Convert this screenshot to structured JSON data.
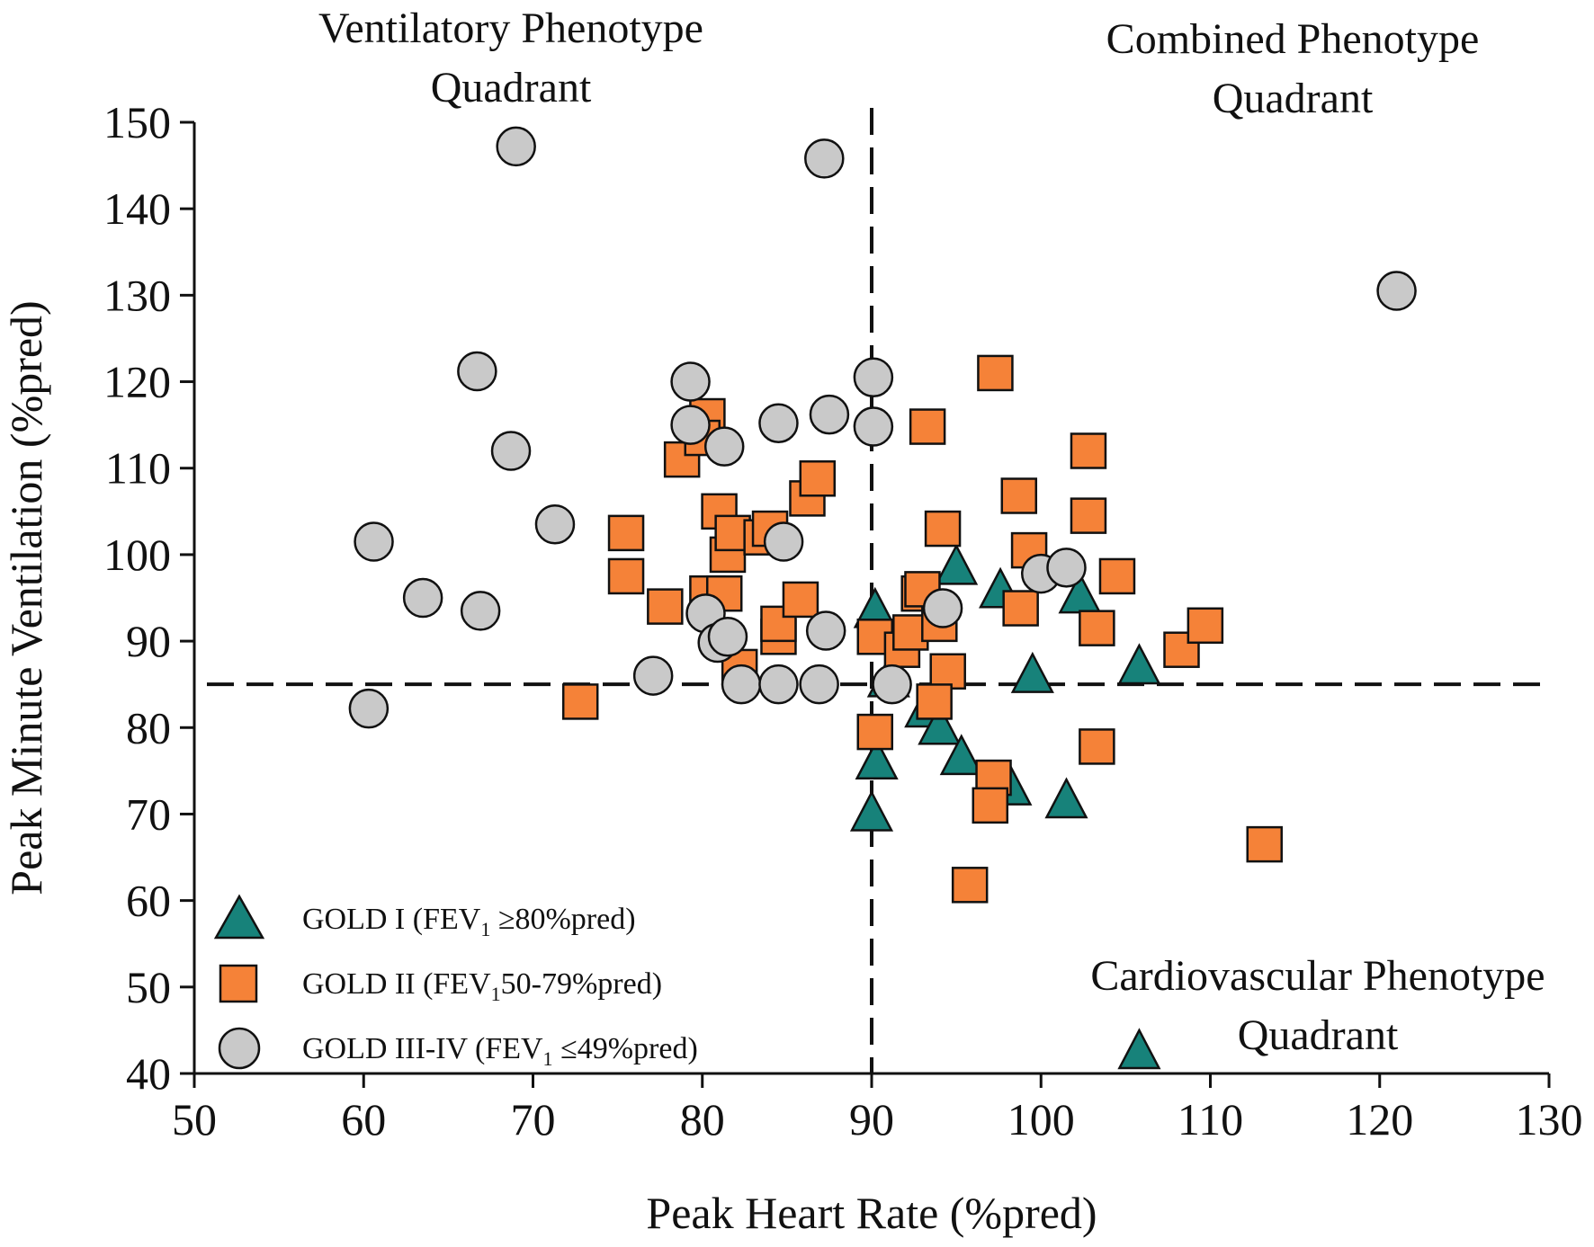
{
  "chart_data": {
    "type": "scatter",
    "xlabel": "Peak Heart Rate (%pred)",
    "ylabel": "Peak Minute Ventilation (%pred)",
    "xlim": [
      50,
      130
    ],
    "ylim": [
      40,
      150
    ],
    "xticks": [
      50,
      60,
      70,
      80,
      90,
      100,
      110,
      120,
      130
    ],
    "yticks": [
      40,
      50,
      60,
      70,
      80,
      90,
      100,
      110,
      120,
      130,
      140,
      150
    ],
    "reference_lines": {
      "x": 90,
      "y": 85,
      "style": "dashed"
    },
    "quadrant_labels": {
      "ventilatory": [
        "Ventilatory Phenotype",
        "Quadrant"
      ],
      "combined": [
        "Combined Phenotype",
        "Quadrant"
      ],
      "cardiovascular": [
        "Cardiovascular Phenotype",
        "Quadrant"
      ]
    },
    "legend": {
      "position": "bottom-left",
      "entries": [
        {
          "pre": "GOLD I (FEV",
          "sub": "1",
          "post": " ≥80%pred)"
        },
        {
          "pre": "GOLD II (FEV",
          "sub": "1",
          "post": "50-79%pred)"
        },
        {
          "pre": "GOLD III-IV (FEV",
          "sub": "1",
          "post": " ≤49%pred)"
        }
      ]
    },
    "series": [
      {
        "name": "GOLD I (FEV1 ≥80%pred)",
        "marker": "triangle",
        "color": "#17827a",
        "points": [
          [
            90.2,
            93.5
          ],
          [
            91.0,
            85.5
          ],
          [
            90.3,
            76.0
          ],
          [
            90.0,
            70.0
          ],
          [
            93.2,
            82.0
          ],
          [
            94.0,
            80.0
          ],
          [
            95.3,
            76.5
          ],
          [
            95.0,
            98.5
          ],
          [
            97.6,
            95.8
          ],
          [
            98.2,
            73.0
          ],
          [
            99.5,
            86.0
          ],
          [
            101.5,
            71.5
          ],
          [
            102.3,
            95.2
          ],
          [
            105.8,
            87.0
          ],
          [
            105.8,
            42.5
          ]
        ]
      },
      {
        "name": "GOLD II (FEV1 50-79%pred)",
        "marker": "square",
        "color": "#f58238",
        "points": [
          [
            72.8,
            83.0
          ],
          [
            75.5,
            102.5
          ],
          [
            75.5,
            97.5
          ],
          [
            77.8,
            94.0
          ],
          [
            78.8,
            111.0
          ],
          [
            80.3,
            116.0
          ],
          [
            80.0,
            113.5
          ],
          [
            80.3,
            95.5
          ],
          [
            81.0,
            105.0
          ],
          [
            81.5,
            100.0
          ],
          [
            81.3,
            95.5
          ],
          [
            81.8,
            102.5
          ],
          [
            82.2,
            87.0
          ],
          [
            83.5,
            102.0
          ],
          [
            84.0,
            103.0
          ],
          [
            84.5,
            90.5
          ],
          [
            84.5,
            92.0
          ],
          [
            85.8,
            94.8
          ],
          [
            86.2,
            106.5
          ],
          [
            86.8,
            108.8
          ],
          [
            90.2,
            90.5
          ],
          [
            90.2,
            79.5
          ],
          [
            91.8,
            89.0
          ],
          [
            92.3,
            91.0
          ],
          [
            92.8,
            95.5
          ],
          [
            93.0,
            96.0
          ],
          [
            93.3,
            114.8
          ],
          [
            94.0,
            92.0
          ],
          [
            94.2,
            103.0
          ],
          [
            94.5,
            86.5
          ],
          [
            93.7,
            83.0
          ],
          [
            95.8,
            61.8
          ],
          [
            97.2,
            74.2
          ],
          [
            97.0,
            71.0
          ],
          [
            97.3,
            121.0
          ],
          [
            98.7,
            106.8
          ],
          [
            98.8,
            93.8
          ],
          [
            99.3,
            100.5
          ],
          [
            102.8,
            112.0
          ],
          [
            102.8,
            104.5
          ],
          [
            103.3,
            91.5
          ],
          [
            103.3,
            77.8
          ],
          [
            104.5,
            97.5
          ],
          [
            108.3,
            89.0
          ],
          [
            109.7,
            91.8
          ],
          [
            113.2,
            66.5
          ]
        ]
      },
      {
        "name": "GOLD III-IV (FEV1 ≤49%pred)",
        "marker": "circle",
        "color": "#c9c9c9",
        "points": [
          [
            60.3,
            82.2
          ],
          [
            60.6,
            101.5
          ],
          [
            63.5,
            95.0
          ],
          [
            66.7,
            121.2
          ],
          [
            66.9,
            93.5
          ],
          [
            68.7,
            112.0
          ],
          [
            69.0,
            147.2
          ],
          [
            71.3,
            103.5
          ],
          [
            77.1,
            86.0
          ],
          [
            79.3,
            120.0
          ],
          [
            79.3,
            115.0
          ],
          [
            80.2,
            93.2
          ],
          [
            80.9,
            89.8
          ],
          [
            81.3,
            112.5
          ],
          [
            81.5,
            90.5
          ],
          [
            82.3,
            85.0
          ],
          [
            84.5,
            85.0
          ],
          [
            84.5,
            115.2
          ],
          [
            84.8,
            101.5
          ],
          [
            86.9,
            85.0
          ],
          [
            87.2,
            145.8
          ],
          [
            87.3,
            91.2
          ],
          [
            87.5,
            116.2
          ],
          [
            90.1,
            120.5
          ],
          [
            90.1,
            114.8
          ],
          [
            91.2,
            85.0
          ],
          [
            94.2,
            93.8
          ],
          [
            100.0,
            97.8
          ],
          [
            101.5,
            98.5
          ],
          [
            121.0,
            130.5
          ]
        ]
      }
    ]
  }
}
